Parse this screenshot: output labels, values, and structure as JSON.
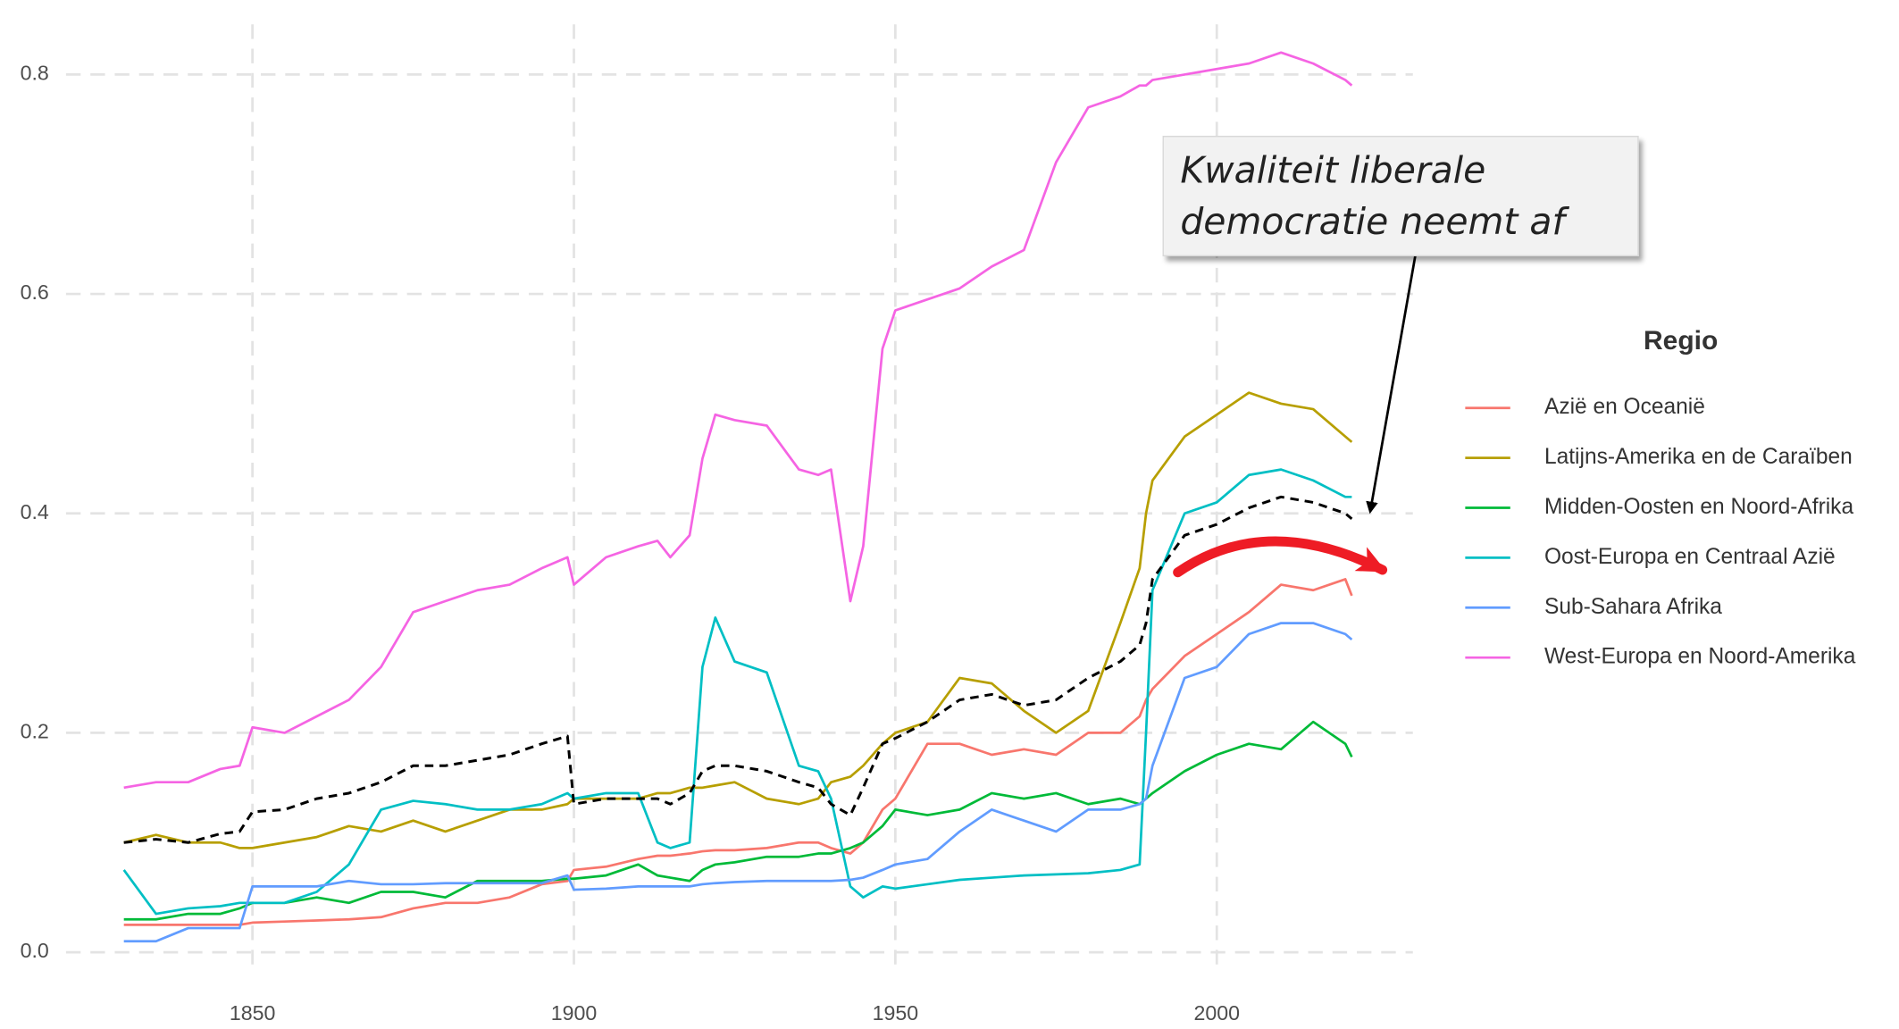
{
  "chart_data": {
    "type": "line",
    "annotation": "Kwaliteit liberale democratie neemt af",
    "legend_title": "Regio",
    "legend_position": "right",
    "grid": true,
    "x": [
      1830,
      1835,
      1840,
      1845,
      1848,
      1850,
      1855,
      1860,
      1865,
      1870,
      1875,
      1880,
      1885,
      1890,
      1895,
      1899,
      1900,
      1905,
      1910,
      1913,
      1915,
      1918,
      1920,
      1922,
      1925,
      1930,
      1935,
      1938,
      1940,
      1943,
      1945,
      1948,
      1950,
      1955,
      1960,
      1965,
      1970,
      1975,
      1980,
      1985,
      1988,
      1989,
      1990,
      1995,
      2000,
      2005,
      2010,
      2015,
      2020,
      2021
    ],
    "xlim": [
      1821,
      2030.5
    ],
    "xticks": [
      1850,
      1900,
      1950,
      2000
    ],
    "ylim": [
      -0.02,
      0.8457
    ],
    "yticks": [
      {
        "value": 0,
        "label": "0.0"
      },
      0.2,
      0.4,
      0.6,
      0.8
    ],
    "series": [
      {
        "name": "Azië en Oceanië",
        "color": "#F8766D",
        "values": [
          0.025,
          0.025,
          0.025,
          0.025,
          0.025,
          0.027,
          0.028,
          0.029,
          0.03,
          0.032,
          0.04,
          0.045,
          0.045,
          0.05,
          0.062,
          0.065,
          0.075,
          0.078,
          0.085,
          0.088,
          0.088,
          0.09,
          0.092,
          0.093,
          0.093,
          0.095,
          0.1,
          0.1,
          0.095,
          0.09,
          0.1,
          0.13,
          0.14,
          0.19,
          0.19,
          0.18,
          0.185,
          0.18,
          0.2,
          0.2,
          0.215,
          0.23,
          0.24,
          0.27,
          0.29,
          0.31,
          0.335,
          0.33,
          0.34,
          0.325
        ]
      },
      {
        "name": "Latijns-Amerika en de Caraïben",
        "color": "#B79F00",
        "values": [
          0.1,
          0.107,
          0.1,
          0.1,
          0.095,
          0.095,
          0.1,
          0.105,
          0.115,
          0.11,
          0.12,
          0.11,
          0.12,
          0.13,
          0.13,
          0.135,
          0.14,
          0.14,
          0.14,
          0.145,
          0.145,
          0.15,
          0.15,
          0.152,
          0.155,
          0.14,
          0.135,
          0.14,
          0.155,
          0.16,
          0.17,
          0.19,
          0.2,
          0.21,
          0.25,
          0.245,
          0.22,
          0.2,
          0.22,
          0.3,
          0.35,
          0.4,
          0.43,
          0.47,
          0.49,
          0.51,
          0.5,
          0.495,
          0.47,
          0.465
        ]
      },
      {
        "name": "Midden-Oosten en Noord-Afrika",
        "color": "#00BA38",
        "values": [
          0.03,
          0.03,
          0.035,
          0.035,
          0.04,
          0.045,
          0.045,
          0.05,
          0.045,
          0.055,
          0.055,
          0.05,
          0.065,
          0.065,
          0.065,
          0.067,
          0.067,
          0.07,
          0.08,
          0.07,
          0.068,
          0.065,
          0.075,
          0.08,
          0.082,
          0.087,
          0.087,
          0.09,
          0.09,
          0.095,
          0.1,
          0.115,
          0.13,
          0.125,
          0.13,
          0.145,
          0.14,
          0.145,
          0.135,
          0.14,
          0.135,
          0.14,
          0.145,
          0.165,
          0.18,
          0.19,
          0.185,
          0.21,
          0.19,
          0.178
        ]
      },
      {
        "name": "Oost-Europa en Centraal Azië",
        "color": "#00BFC4",
        "values": [
          0.075,
          0.035,
          0.04,
          0.042,
          0.045,
          0.045,
          0.045,
          0.055,
          0.08,
          0.13,
          0.138,
          0.135,
          0.13,
          0.13,
          0.135,
          0.145,
          0.14,
          0.145,
          0.145,
          0.1,
          0.095,
          0.1,
          0.26,
          0.305,
          0.265,
          0.255,
          0.17,
          0.165,
          0.14,
          0.06,
          0.05,
          0.06,
          0.058,
          0.062,
          0.066,
          0.068,
          0.07,
          0.071,
          0.072,
          0.075,
          0.08,
          0.2,
          0.33,
          0.4,
          0.41,
          0.435,
          0.44,
          0.43,
          0.415,
          0.415
        ]
      },
      {
        "name": "Sub-Sahara Afrika",
        "color": "#619CFF",
        "values": [
          0.01,
          0.01,
          0.022,
          0.022,
          0.022,
          0.06,
          0.06,
          0.06,
          0.065,
          0.062,
          0.062,
          0.063,
          0.063,
          0.063,
          0.063,
          0.07,
          0.057,
          0.058,
          0.06,
          0.06,
          0.06,
          0.06,
          0.062,
          0.063,
          0.064,
          0.065,
          0.065,
          0.065,
          0.065,
          0.066,
          0.068,
          0.075,
          0.08,
          0.085,
          0.11,
          0.13,
          0.12,
          0.11,
          0.13,
          0.13,
          0.135,
          0.14,
          0.17,
          0.25,
          0.26,
          0.29,
          0.3,
          0.3,
          0.29,
          0.285
        ]
      },
      {
        "name": "West-Europa en Noord-Amerika",
        "color": "#F564E3",
        "values": [
          0.15,
          0.155,
          0.155,
          0.167,
          0.17,
          0.205,
          0.2,
          0.215,
          0.23,
          0.26,
          0.31,
          0.32,
          0.33,
          0.335,
          0.35,
          0.36,
          0.335,
          0.36,
          0.37,
          0.375,
          0.36,
          0.38,
          0.45,
          0.49,
          0.485,
          0.48,
          0.44,
          0.435,
          0.44,
          0.32,
          0.37,
          0.55,
          0.585,
          0.595,
          0.605,
          0.625,
          0.64,
          0.72,
          0.77,
          0.78,
          0.79,
          0.79,
          0.795,
          0.8,
          0.805,
          0.81,
          0.82,
          0.81,
          0.795,
          0.79
        ]
      },
      {
        "color": "#000000",
        "dash": true,
        "values": [
          0.1,
          0.103,
          0.1,
          0.108,
          0.11,
          0.128,
          0.13,
          0.14,
          0.145,
          0.155,
          0.17,
          0.17,
          0.175,
          0.18,
          0.19,
          0.197,
          0.135,
          0.14,
          0.14,
          0.14,
          0.135,
          0.145,
          0.165,
          0.17,
          0.17,
          0.165,
          0.155,
          0.15,
          0.135,
          0.125,
          0.15,
          0.19,
          0.195,
          0.21,
          0.23,
          0.235,
          0.225,
          0.23,
          0.25,
          0.265,
          0.28,
          0.3,
          0.34,
          0.38,
          0.39,
          0.405,
          0.415,
          0.41,
          0.4,
          0.395
        ]
      }
    ]
  }
}
